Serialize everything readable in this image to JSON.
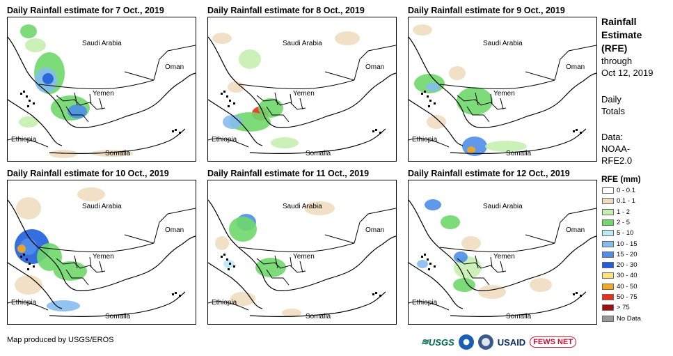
{
  "panels": [
    {
      "title": "Daily Rainfall estimate for 7 Oct., 2019"
    },
    {
      "title": "Daily Rainfall estimate for 8 Oct., 2019"
    },
    {
      "title": "Daily Rainfall estimate for 9 Oct., 2019"
    },
    {
      "title": "Daily Rainfall estimate for 10 Oct., 2019"
    },
    {
      "title": "Daily Rainfall estimate for 11 Oct., 2019"
    },
    {
      "title": "Daily Rainfall estimate for 12 Oct., 2019"
    }
  ],
  "map_labels": {
    "saudi": "Saudi Arabia",
    "oman": "Oman",
    "yemen": "Yemen",
    "ethiopia": "Ethiopia",
    "somalia": "Somalia"
  },
  "side": {
    "line1": "Rainfall",
    "line2": "Estimate",
    "line3": "(RFE)",
    "line4": "through",
    "line5": "Oct 12, 2019",
    "daily1": "Daily",
    "daily2": "Totals",
    "data1": "Data:",
    "data2": "NOAA-",
    "data3": "RFE2.0"
  },
  "legend": {
    "title": "RFE (mm)",
    "items": [
      {
        "label": "0 - 0.1",
        "color": "#ffffff"
      },
      {
        "label": "0.1 - 1",
        "color": "#efdcc0"
      },
      {
        "label": "1 - 2",
        "color": "#c6f0b0"
      },
      {
        "label": "2 - 5",
        "color": "#6fd86a"
      },
      {
        "label": "5 - 10",
        "color": "#bde9f5"
      },
      {
        "label": "10 - 15",
        "color": "#86bdf0"
      },
      {
        "label": "15 - 20",
        "color": "#4f8ee8"
      },
      {
        "label": "20 - 30",
        "color": "#1f5fdc"
      },
      {
        "label": "30 - 40",
        "color": "#fbe27a"
      },
      {
        "label": "40 - 50",
        "color": "#f5a623"
      },
      {
        "label": "50 - 75",
        "color": "#e8301c"
      },
      {
        "label": "> 75",
        "color": "#a01010"
      },
      {
        "label": "No Data",
        "color": "#999999"
      }
    ]
  },
  "credit": "Map produced by USGS/EROS",
  "logos": {
    "usgs": "USGS",
    "usaid": "USAID",
    "fews": "FEWS NET"
  }
}
